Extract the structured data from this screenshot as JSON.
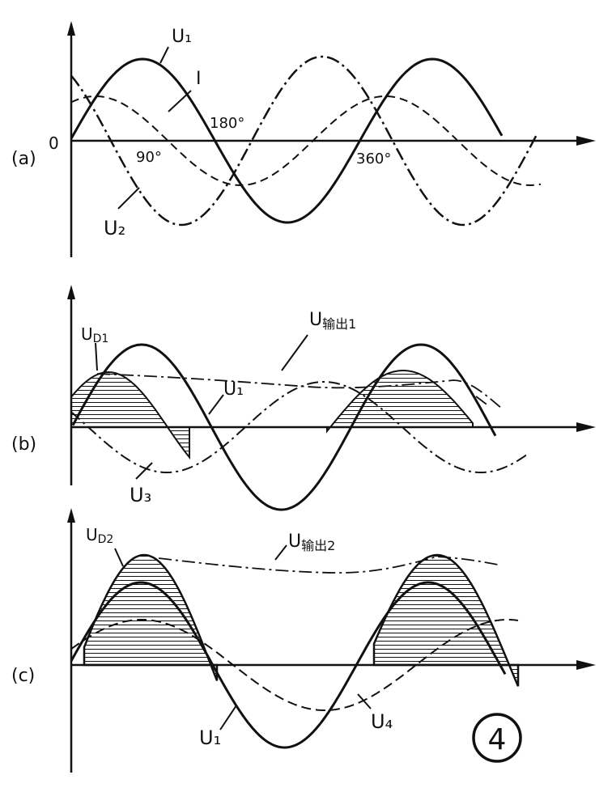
{
  "figure_number": "4",
  "panels": [
    {
      "id": "a",
      "panel_label": "(a)",
      "origin_label": "0",
      "angle_labels": [
        "90°",
        "180°",
        "360°"
      ],
      "curve_labels": [
        "U₁",
        "I",
        "U₂"
      ]
    },
    {
      "id": "b",
      "panel_label": "(b)",
      "curve_labels": [
        "U_D1",
        "U输出1",
        "U₁",
        "U₃"
      ]
    },
    {
      "id": "c",
      "panel_label": "(c)",
      "curve_labels": [
        "U_D2",
        "U输出2",
        "U₁",
        "U₄"
      ]
    }
  ],
  "text": {
    "a_label": "(a)",
    "a_zero": "0",
    "a_90": "90°",
    "a_180": "180°",
    "a_360": "360°",
    "a_U1": "U₁",
    "a_I": "I",
    "a_U2": "U₂",
    "b_label": "(b)",
    "b_UD1": "U",
    "b_UD1_sub": "D1",
    "b_Uout1": "U",
    "b_Uout1_sub": "输出1",
    "b_U1": "U₁",
    "b_U3": "U₃",
    "c_label": "(c)",
    "c_UD2": "U",
    "c_UD2_sub": "D2",
    "c_Uout2": "U",
    "c_Uout2_sub": "输出2",
    "c_U1": "U₁",
    "c_U4": "U₄",
    "fig_no": "4"
  },
  "colors": {
    "ink": "#111111",
    "background": "#ffffff"
  }
}
